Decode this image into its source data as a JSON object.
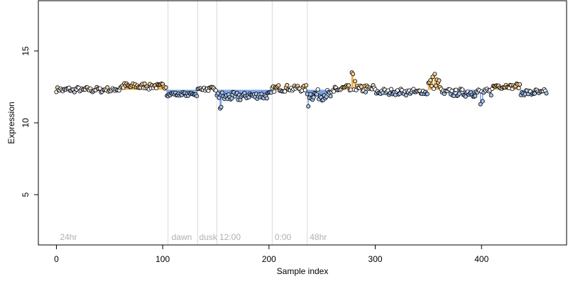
{
  "chart_data": {
    "type": "scatter",
    "xlabel": "Sample index",
    "ylabel": "Expression",
    "xlim": [
      -17,
      480
    ],
    "ylim": [
      1.5,
      18.5
    ],
    "xticks": [
      "0",
      "100",
      "200",
      "300",
      "400"
    ],
    "yticks": [
      "5",
      "10",
      "15"
    ],
    "baseline": 12.3,
    "colors": {
      "high": "#f2a93b",
      "low": "#6f9be0",
      "point_fill_high": "#f6d29b",
      "point_fill_low": "#a9c3ee",
      "point_fill_mid": "#ffffff",
      "boundary": "#d9d9d9",
      "condition_label": "#b0b0b0"
    },
    "condition_boundaries": [
      105,
      133,
      151,
      203,
      236
    ],
    "condition_labels": [
      {
        "text": "24hr",
        "x": 2
      },
      {
        "text": "dawn",
        "x": 107
      },
      {
        "text": "dusk",
        "x": 133
      },
      {
        "text": "12:00",
        "x": 152
      },
      {
        "text": "0:00",
        "x": 204
      },
      {
        "text": "48hr",
        "x": 237
      }
    ],
    "segments": [
      {
        "x0": 0,
        "x1": 60,
        "mean": 12.3,
        "amp": 0.15
      },
      {
        "x0": 60,
        "x1": 104,
        "mean": 12.55,
        "amp": 0.2
      },
      {
        "x0": 104,
        "x1": 133,
        "mean": 12.0,
        "amp": 0.1
      },
      {
        "x0": 133,
        "x1": 151,
        "mean": 12.35,
        "amp": 0.1
      },
      {
        "x0": 151,
        "x1": 175,
        "mean": 11.8,
        "amp": 0.35
      },
      {
        "x0": 175,
        "x1": 203,
        "mean": 11.9,
        "amp": 0.25
      },
      {
        "x0": 203,
        "x1": 236,
        "mean": 12.4,
        "amp": 0.2
      },
      {
        "x0": 236,
        "x1": 262,
        "mean": 11.95,
        "amp": 0.35
      },
      {
        "x0": 262,
        "x1": 300,
        "mean": 12.35,
        "amp": 0.3
      },
      {
        "x0": 300,
        "x1": 350,
        "mean": 12.15,
        "amp": 0.2
      },
      {
        "x0": 350,
        "x1": 362,
        "mean": 12.7,
        "amp": 0.35
      },
      {
        "x0": 362,
        "x1": 410,
        "mean": 12.1,
        "amp": 0.25
      },
      {
        "x0": 410,
        "x1": 437,
        "mean": 12.55,
        "amp": 0.15
      },
      {
        "x0": 437,
        "x1": 462,
        "mean": 12.1,
        "amp": 0.2
      }
    ],
    "spikes": [
      {
        "x": 154,
        "y": 11.0
      },
      {
        "x": 155,
        "y": 11.1
      },
      {
        "x": 237,
        "y": 11.15
      },
      {
        "x": 278,
        "y": 13.5
      },
      {
        "x": 279,
        "y": 13.4
      },
      {
        "x": 281,
        "y": 12.9
      },
      {
        "x": 356,
        "y": 13.4
      },
      {
        "x": 354,
        "y": 13.2
      },
      {
        "x": 358,
        "y": 13.0
      },
      {
        "x": 399,
        "y": 11.3
      },
      {
        "x": 401,
        "y": 11.5
      }
    ]
  }
}
